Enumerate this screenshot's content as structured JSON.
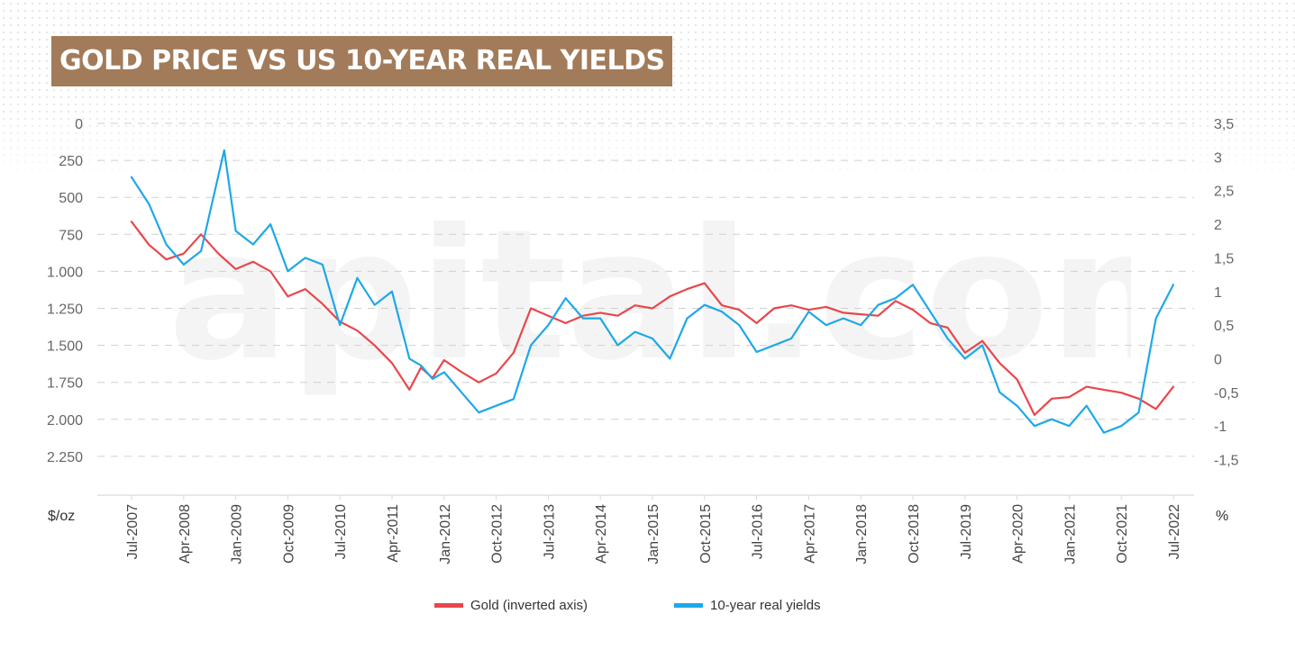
{
  "title": "GOLD PRICE VS US 10-YEAR REAL YIELDS",
  "watermark": "capital.com",
  "colors": {
    "gold": "#e8474b",
    "yields": "#1ea8e8",
    "title_bg": "#a27b5a",
    "grid": "#cfcfcf",
    "axis_text": "#666666"
  },
  "chart_data": {
    "type": "line",
    "title": "GOLD PRICE VS US 10-YEAR REAL YIELDS",
    "x_ticks": [
      "Jul-2007",
      "Apr-2008",
      "Jan-2009",
      "Oct-2009",
      "Jul-2010",
      "Apr-2011",
      "Jan-2012",
      "Oct-2012",
      "Jul-2013",
      "Apr-2014",
      "Jan-2015",
      "Oct-2015",
      "Jul-2016",
      "Apr-2017",
      "Jan-2018",
      "Oct-2018",
      "Jul-2019",
      "Apr-2020",
      "Jan-2021",
      "Oct-2021",
      "Jul-2022"
    ],
    "y_left": {
      "unit": "$/oz",
      "inverted": true,
      "range": [
        0,
        2500
      ],
      "tick_values": [
        0,
        250,
        500,
        750,
        1000,
        1250,
        1500,
        1750,
        2000,
        2250
      ],
      "tick_labels": [
        "0",
        "250",
        "500",
        "750",
        "1.000",
        "1.250",
        "1.500",
        "1.750",
        "2.000",
        "2.250"
      ]
    },
    "y_right": {
      "unit": "%",
      "range": [
        -2.0,
        3.5
      ],
      "tick_values": [
        3.5,
        3,
        2.5,
        2,
        1.5,
        1,
        0.5,
        0,
        -0.5,
        -1,
        -1.5
      ],
      "tick_labels": [
        "3,5",
        "3",
        "2,5",
        "2",
        "1,5",
        "1",
        "0,5",
        "0",
        "-0,5",
        "-1",
        "-1,5"
      ]
    },
    "grid": "horizontal dashed",
    "legend_position": "bottom-center",
    "series": [
      {
        "name": "Gold (inverted axis)",
        "axis": "left",
        "color": "#e8474b",
        "x": [
          "2007-07",
          "2007-10",
          "2008-01",
          "2008-04",
          "2008-07",
          "2008-10",
          "2009-01",
          "2009-04",
          "2009-07",
          "2009-10",
          "2010-01",
          "2010-04",
          "2010-07",
          "2010-10",
          "2011-01",
          "2011-04",
          "2011-07",
          "2011-09",
          "2011-11",
          "2012-01",
          "2012-04",
          "2012-07",
          "2012-10",
          "2013-01",
          "2013-04",
          "2013-07",
          "2013-10",
          "2014-01",
          "2014-04",
          "2014-07",
          "2014-10",
          "2015-01",
          "2015-04",
          "2015-07",
          "2015-10",
          "2016-01",
          "2016-04",
          "2016-07",
          "2016-10",
          "2017-01",
          "2017-04",
          "2017-07",
          "2017-10",
          "2018-01",
          "2018-04",
          "2018-07",
          "2018-10",
          "2019-01",
          "2019-04",
          "2019-07",
          "2019-10",
          "2020-01",
          "2020-04",
          "2020-07",
          "2020-10",
          "2021-01",
          "2021-04",
          "2021-07",
          "2021-10",
          "2022-01",
          "2022-04",
          "2022-07"
        ],
        "values": [
          665,
          820,
          920,
          880,
          750,
          880,
          985,
          935,
          1000,
          1170,
          1120,
          1220,
          1340,
          1400,
          1500,
          1620,
          1800,
          1650,
          1720,
          1600,
          1680,
          1750,
          1690,
          1550,
          1250,
          1300,
          1350,
          1300,
          1280,
          1300,
          1230,
          1250,
          1170,
          1120,
          1080,
          1230,
          1260,
          1350,
          1250,
          1230,
          1260,
          1240,
          1280,
          1290,
          1300,
          1200,
          1260,
          1350,
          1380,
          1550,
          1470,
          1620,
          1730,
          1970,
          1860,
          1850,
          1780,
          1800,
          1820,
          1860,
          1930,
          1780
        ]
      },
      {
        "name": "10-year real yields",
        "axis": "right",
        "color": "#1ea8e8",
        "x": [
          "2007-07",
          "2007-10",
          "2008-01",
          "2008-04",
          "2008-07",
          "2008-11",
          "2009-01",
          "2009-04",
          "2009-07",
          "2009-10",
          "2010-01",
          "2010-04",
          "2010-07",
          "2010-10",
          "2011-01",
          "2011-04",
          "2011-07",
          "2011-09",
          "2011-11",
          "2012-01",
          "2012-04",
          "2012-07",
          "2012-10",
          "2013-01",
          "2013-04",
          "2013-07",
          "2013-10",
          "2014-01",
          "2014-04",
          "2014-07",
          "2014-10",
          "2015-01",
          "2015-04",
          "2015-07",
          "2015-10",
          "2016-01",
          "2016-04",
          "2016-07",
          "2016-10",
          "2017-01",
          "2017-04",
          "2017-07",
          "2017-10",
          "2018-01",
          "2018-04",
          "2018-07",
          "2018-10",
          "2019-01",
          "2019-04",
          "2019-07",
          "2019-10",
          "2020-01",
          "2020-04",
          "2020-07",
          "2020-10",
          "2021-01",
          "2021-04",
          "2021-07",
          "2021-10",
          "2022-01",
          "2022-04",
          "2022-07"
        ],
        "values": [
          2.7,
          2.3,
          1.7,
          1.4,
          1.6,
          3.1,
          1.9,
          1.7,
          2.0,
          1.3,
          1.5,
          1.4,
          0.5,
          1.2,
          0.8,
          1.0,
          0.0,
          -0.1,
          -0.3,
          -0.2,
          -0.5,
          -0.8,
          -0.7,
          -0.6,
          0.2,
          0.5,
          0.9,
          0.6,
          0.6,
          0.2,
          0.4,
          0.3,
          0.0,
          0.6,
          0.8,
          0.7,
          0.5,
          0.1,
          0.2,
          0.3,
          0.7,
          0.5,
          0.6,
          0.5,
          0.8,
          0.9,
          1.1,
          0.7,
          0.3,
          0.0,
          0.2,
          -0.5,
          -0.7,
          -1.0,
          -0.9,
          -1.0,
          -0.7,
          -1.1,
          -1.0,
          -0.8,
          0.6,
          1.1
        ]
      }
    ]
  },
  "legend": [
    {
      "label": "Gold (inverted axis)",
      "color": "#e8474b"
    },
    {
      "label": "10-year real yields",
      "color": "#1ea8e8"
    }
  ]
}
